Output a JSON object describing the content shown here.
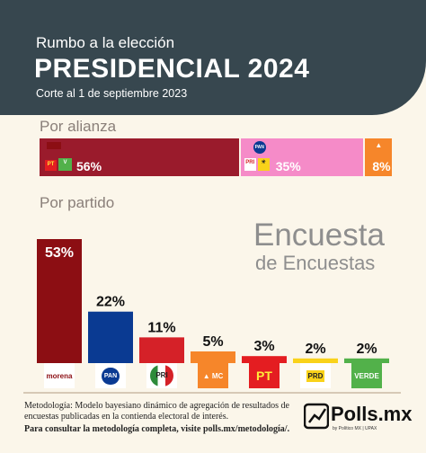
{
  "header": {
    "kicker": "Rumbo a la elección",
    "title": "PRESIDENCIAL 2024",
    "cutoff": "Corte al 1 de septiembre 2023"
  },
  "sections": {
    "alliance_label": "Por alianza",
    "party_label": "Por partido"
  },
  "watermark": {
    "line1": "Encuesta",
    "line2": "de Encuestas"
  },
  "chart_data": [
    {
      "type": "bar",
      "orientation": "stacked-horizontal",
      "categories": [
        "MORENA-PT-VERDE",
        "PAN-PRI-PRD",
        "MC"
      ],
      "values": [
        56,
        35,
        8
      ],
      "labels": [
        "56%",
        "35%",
        "8%"
      ],
      "colors": [
        "#9a1b2c",
        "#f58bc8",
        "#f6862a"
      ]
    },
    {
      "type": "bar",
      "categories": [
        "morena",
        "PAN",
        "PRI",
        "MC",
        "PT",
        "PRD",
        "VERDE"
      ],
      "values": [
        53,
        22,
        11,
        5,
        3,
        2,
        2
      ],
      "labels": [
        "53%",
        "22%",
        "11%",
        "5%",
        "3%",
        "2%",
        "2%"
      ],
      "colors": [
        "#8c0e13",
        "#0a3a92",
        "#d52128",
        "#f6862a",
        "#e41d21",
        "#f9d21a",
        "#52b14a"
      ],
      "ylim": [
        0,
        53
      ]
    }
  ],
  "logos": {
    "morena": "morena",
    "pan": "PAN",
    "pri": "PRI",
    "mc": "MC",
    "pt": "PT",
    "prd": "PRD",
    "verde": "VERDE"
  },
  "footer": {
    "methodology": "Metodología: Modelo bayesiano dinámico de agregación de resultados de encuestas publicadas en la contienda electoral de interés.",
    "link_text": "Para consultar la metodología completa, visite polls.mx/metodología/.",
    "brand": "Polls.mx",
    "brand_sub": "by Político MX | UPAX"
  }
}
